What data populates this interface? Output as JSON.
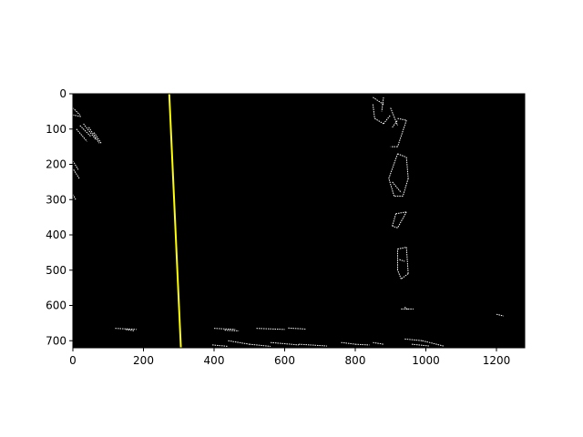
{
  "chart_data": {
    "type": "image",
    "xlim": [
      0,
      1280
    ],
    "ylim": [
      720,
      0
    ],
    "xticks": [
      0,
      200,
      400,
      600,
      800,
      1000,
      1200
    ],
    "yticks": [
      0,
      100,
      200,
      300,
      400,
      500,
      600,
      700
    ],
    "background_color": "#000000",
    "edge_color": "#ffffff",
    "fitted_line": {
      "color": "#ffff00",
      "points": [
        [
          273,
          0
        ],
        [
          306,
          720
        ]
      ]
    },
    "edge_segments": [
      [
        [
          0,
          40
        ],
        [
          20,
          60
        ]
      ],
      [
        [
          0,
          60
        ],
        [
          25,
          65
        ]
      ],
      [
        [
          20,
          90
        ],
        [
          50,
          120
        ]
      ],
      [
        [
          30,
          85
        ],
        [
          65,
          130
        ]
      ],
      [
        [
          45,
          95
        ],
        [
          75,
          140
        ]
      ],
      [
        [
          60,
          110
        ],
        [
          80,
          140
        ]
      ],
      [
        [
          10,
          100
        ],
        [
          40,
          135
        ]
      ],
      [
        [
          0,
          190
        ],
        [
          15,
          215
        ]
      ],
      [
        [
          2,
          215
        ],
        [
          18,
          240
        ]
      ],
      [
        [
          0,
          285
        ],
        [
          8,
          300
        ]
      ],
      [
        [
          850,
          10
        ],
        [
          880,
          30
        ]
      ],
      [
        [
          850,
          30
        ],
        [
          855,
          70
        ]
      ],
      [
        [
          855,
          70
        ],
        [
          880,
          85
        ]
      ],
      [
        [
          880,
          85
        ],
        [
          900,
          60
        ]
      ],
      [
        [
          880,
          10
        ],
        [
          875,
          50
        ]
      ],
      [
        [
          900,
          40
        ],
        [
          910,
          65
        ]
      ],
      [
        [
          910,
          65
        ],
        [
          920,
          90
        ]
      ],
      [
        [
          920,
          70
        ],
        [
          945,
          75
        ]
      ],
      [
        [
          945,
          75
        ],
        [
          920,
          150
        ]
      ],
      [
        [
          920,
          150
        ],
        [
          900,
          150
        ]
      ],
      [
        [
          905,
          95
        ],
        [
          920,
          75
        ]
      ],
      [
        [
          920,
          170
        ],
        [
          945,
          180
        ]
      ],
      [
        [
          945,
          180
        ],
        [
          950,
          240
        ]
      ],
      [
        [
          950,
          240
        ],
        [
          935,
          290
        ]
      ],
      [
        [
          935,
          290
        ],
        [
          910,
          290
        ]
      ],
      [
        [
          910,
          290
        ],
        [
          895,
          240
        ]
      ],
      [
        [
          895,
          240
        ],
        [
          920,
          170
        ]
      ],
      [
        [
          905,
          250
        ],
        [
          930,
          280
        ]
      ],
      [
        [
          915,
          340
        ],
        [
          945,
          335
        ]
      ],
      [
        [
          945,
          335
        ],
        [
          920,
          380
        ]
      ],
      [
        [
          920,
          380
        ],
        [
          905,
          375
        ]
      ],
      [
        [
          905,
          375
        ],
        [
          915,
          340
        ]
      ],
      [
        [
          920,
          440
        ],
        [
          945,
          435
        ]
      ],
      [
        [
          945,
          435
        ],
        [
          950,
          510
        ]
      ],
      [
        [
          950,
          510
        ],
        [
          930,
          525
        ]
      ],
      [
        [
          930,
          525
        ],
        [
          920,
          500
        ]
      ],
      [
        [
          920,
          500
        ],
        [
          920,
          440
        ]
      ],
      [
        [
          925,
          470
        ],
        [
          940,
          475
        ]
      ],
      [
        [
          930,
          610
        ],
        [
          965,
          610
        ]
      ],
      [
        [
          940,
          605
        ],
        [
          950,
          612
        ]
      ],
      [
        [
          1200,
          625
        ],
        [
          1220,
          630
        ]
      ],
      [
        [
          120,
          665
        ],
        [
          180,
          668
        ]
      ],
      [
        [
          150,
          668
        ],
        [
          175,
          672
        ]
      ],
      [
        [
          400,
          665
        ],
        [
          460,
          668
        ]
      ],
      [
        [
          430,
          670
        ],
        [
          470,
          672
        ]
      ],
      [
        [
          520,
          665
        ],
        [
          600,
          668
        ]
      ],
      [
        [
          610,
          664
        ],
        [
          660,
          667
        ]
      ],
      [
        [
          395,
          712
        ],
        [
          440,
          716
        ]
      ],
      [
        [
          440,
          700
        ],
        [
          500,
          710
        ]
      ],
      [
        [
          500,
          710
        ],
        [
          560,
          716
        ]
      ],
      [
        [
          560,
          705
        ],
        [
          640,
          712
        ]
      ],
      [
        [
          640,
          710
        ],
        [
          720,
          715
        ]
      ],
      [
        [
          760,
          705
        ],
        [
          800,
          710
        ]
      ],
      [
        [
          800,
          710
        ],
        [
          840,
          712
        ]
      ],
      [
        [
          850,
          705
        ],
        [
          880,
          710
        ]
      ],
      [
        [
          940,
          695
        ],
        [
          990,
          700
        ]
      ],
      [
        [
          990,
          700
        ],
        [
          1050,
          715
        ]
      ],
      [
        [
          960,
          710
        ],
        [
          1010,
          715
        ]
      ]
    ]
  }
}
